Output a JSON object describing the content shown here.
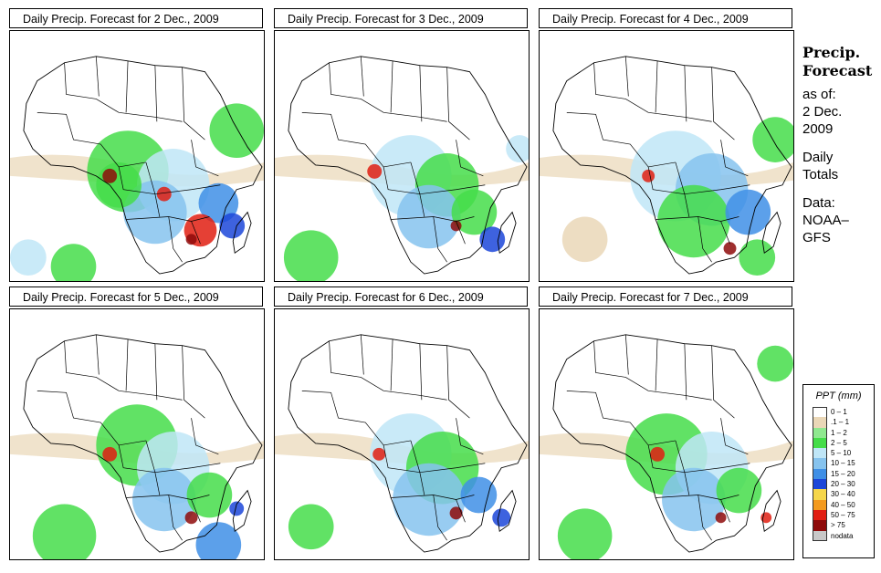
{
  "panels": [
    {
      "title": "Daily Precip. Forecast for  2 Dec., 2009"
    },
    {
      "title": "Daily Precip. Forecast for  3 Dec., 2009"
    },
    {
      "title": "Daily Precip. Forecast for  4 Dec., 2009"
    },
    {
      "title": "Daily Precip. Forecast for  5 Dec., 2009"
    },
    {
      "title": "Daily Precip. Forecast for  6 Dec., 2009"
    },
    {
      "title": "Daily Precip. Forecast for  7 Dec., 2009"
    }
  ],
  "side": {
    "heading_line1": "Precip.",
    "heading_line2": "Forecast",
    "asof_line1": "as of:",
    "asof_line2": "2 Dec.",
    "asof_line3": "2009",
    "totals_line1": "Daily",
    "totals_line2": "Totals",
    "data_line1": "Data:",
    "data_line2": "NOAA–",
    "data_line3": "GFS"
  },
  "legend": {
    "title": "PPT (mm)",
    "items": [
      {
        "label": "0 – 1",
        "color": "#ffffff"
      },
      {
        "label": ".1 – 1",
        "color": "#ead7b7"
      },
      {
        "label": "1 – 2",
        "color": "#8fe88f"
      },
      {
        "label": "2 – 5",
        "color": "#45dd4a"
      },
      {
        "label": "5 – 10",
        "color": "#bfe6f7"
      },
      {
        "label": "10 – 15",
        "color": "#86c3ee"
      },
      {
        "label": "15 – 20",
        "color": "#3f8fe6"
      },
      {
        "label": "20 – 30",
        "color": "#1c47d9"
      },
      {
        "label": "30 – 40",
        "color": "#f5d64a"
      },
      {
        "label": "40 – 50",
        "color": "#f39a1e"
      },
      {
        "label": "50 – 75",
        "color": "#e11e12"
      },
      {
        "label": "> 75",
        "color": "#8e0a0a"
      },
      {
        "label": "nodata",
        "color": "#c8c8c8"
      }
    ]
  }
}
